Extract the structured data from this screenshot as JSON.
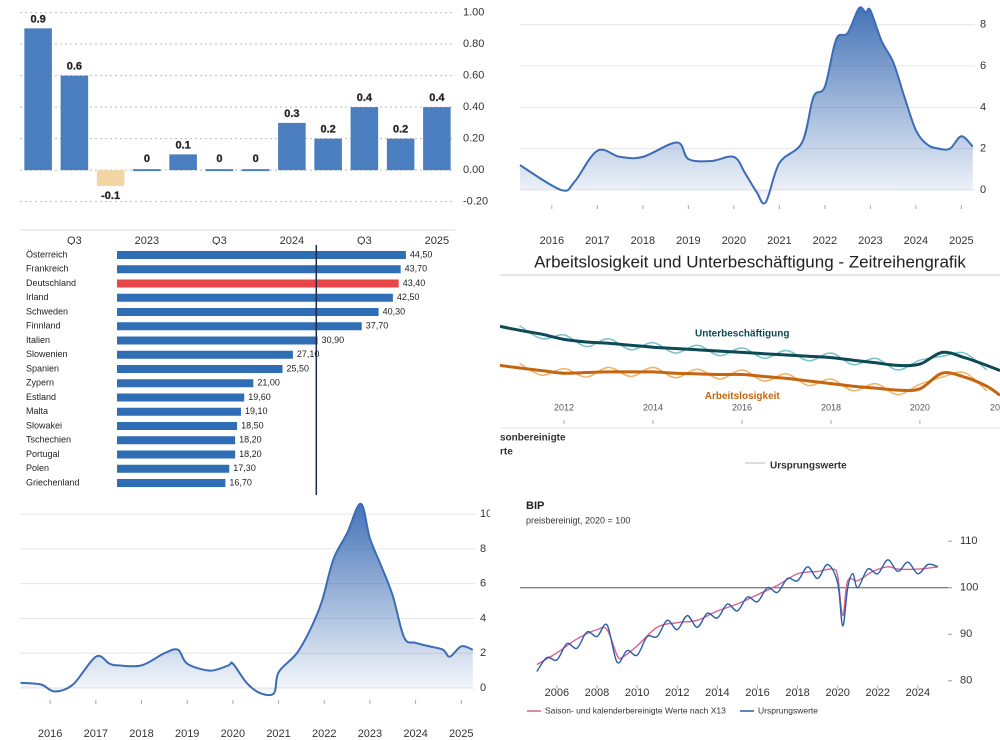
{
  "chart_data": [
    {
      "type": "bar",
      "categories": [
        null,
        "Q3",
        null,
        "2023",
        null,
        "Q3",
        null,
        "2024",
        null,
        "Q3",
        null,
        "2025"
      ],
      "values": [
        0.9,
        0.6,
        -0.1,
        0,
        0.1,
        0,
        0,
        0.3,
        0.2,
        0.4,
        0.2,
        0.4
      ],
      "color": "#4a7ebf",
      "negative_color": "#f3d5a5",
      "ylim": [
        -0.38,
        1.08
      ],
      "yticks": [
        {
          "value": 1,
          "label": "1.00"
        },
        {
          "value": 0.8,
          "label": "0.80"
        },
        {
          "value": 0.6,
          "label": "0.60"
        },
        {
          "value": 0.4,
          "label": "0.40"
        },
        {
          "value": 0.2,
          "label": "0.20"
        },
        {
          "value": 0,
          "label": "0.00"
        },
        {
          "value": -0.2,
          "label": "-0.20"
        }
      ],
      "grid": true
    },
    {
      "type": "area",
      "series": [
        {
          "color": "#3b6cb4",
          "x": [
            2015.3,
            2016.2,
            2016.5,
            2017.0,
            2017.5,
            2018.0,
            2018.75,
            2019.0,
            2019.5,
            2020.0,
            2020.25,
            2020.5,
            2020.7,
            2021.0,
            2021.5,
            2021.75,
            2022.0,
            2022.25,
            2022.5,
            2022.75,
            2022.9,
            2023.0,
            2023.25,
            2023.5,
            2023.75,
            2024.0,
            2024.25,
            2024.5,
            2024.75,
            2025.0,
            2025.25
          ],
          "values": [
            1.2,
            0.0,
            0.4,
            1.9,
            1.6,
            1.6,
            2.3,
            1.5,
            1.4,
            1.6,
            0.8,
            -0.1,
            -0.6,
            1.3,
            2.3,
            4.5,
            5.0,
            7.3,
            7.6,
            8.8,
            8.6,
            8.7,
            7.2,
            6.2,
            4.5,
            2.9,
            2.2,
            2.0,
            2.0,
            2.6,
            2.1
          ]
        }
      ],
      "xlim": [
        2015.3,
        2025.3
      ],
      "ylim": [
        -0.73,
        9.2
      ],
      "xticks": [
        2016,
        2017,
        2018,
        2019,
        2020,
        2021,
        2022,
        2023,
        2024,
        2025
      ],
      "yticks": [
        0,
        2,
        4,
        6,
        8
      ],
      "grid": true
    },
    {
      "type": "line",
      "title": "Arbeitslosigkeit und Unterbeschäftigung - Zeitreihengrafik",
      "series": [
        {
          "color": "#7cc3c9",
          "x": [
            2011.0,
            2011.5,
            2012.0,
            2012.5,
            2013.0,
            2013.5,
            2014.0,
            2014.5,
            2015.0,
            2015.5,
            2016.0,
            2016.5,
            2017.0,
            2017.5,
            2018.0,
            2018.5,
            2019.0,
            2019.5,
            2020.0,
            2020.5,
            2021.0,
            2021.5
          ],
          "values": [
            7.25,
            6.25,
            6.55,
            5.65,
            6.25,
            5.4,
            5.95,
            5.15,
            5.75,
            4.95,
            5.55,
            4.75,
            5.35,
            4.55,
            5.15,
            4.25,
            4.75,
            3.85,
            4.6,
            4.9,
            5.15,
            3.85
          ]
        },
        {
          "color": "#f2b26b",
          "x": [
            2011.0,
            2011.5,
            2012.0,
            2012.5,
            2013.0,
            2013.5,
            2014.0,
            2014.5,
            2015.0,
            2015.5,
            2016.0,
            2016.5,
            2017.0,
            2017.5,
            2018.0,
            2018.5,
            2019.0,
            2019.5,
            2020.0,
            2020.5,
            2021.0,
            2021.5
          ],
          "values": [
            4.35,
            3.45,
            3.95,
            3.3,
            4.05,
            3.35,
            4.05,
            3.25,
            3.9,
            3.15,
            3.85,
            3.0,
            3.55,
            2.65,
            3.15,
            2.25,
            2.8,
            1.95,
            2.75,
            3.3,
            3.65,
            2.25
          ]
        },
        {
          "name": "Unterbeschäftigung",
          "color": "#0d4a55",
          "x": [
            2010.56,
            2011.0,
            2011.5,
            2012.0,
            2012.5,
            2013.0,
            2013.5,
            2014.0,
            2014.5,
            2015.0,
            2015.5,
            2016.0,
            2016.5,
            2017.0,
            2017.5,
            2018.0,
            2018.5,
            2019.0,
            2019.5,
            2020.0,
            2020.5,
            2021.0,
            2021.5,
            2021.8
          ],
          "values": [
            7.2,
            6.9,
            6.6,
            6.2,
            6.0,
            5.9,
            5.75,
            5.6,
            5.5,
            5.4,
            5.3,
            5.2,
            5.1,
            5.0,
            4.9,
            4.8,
            4.6,
            4.4,
            4.2,
            4.3,
            5.2,
            4.8,
            4.2,
            3.8
          ]
        },
        {
          "name": "Arbeitslosigkeit",
          "color": "#c6650f",
          "x": [
            2010.56,
            2011.0,
            2011.5,
            2012.0,
            2012.5,
            2013.0,
            2013.5,
            2014.0,
            2014.5,
            2015.0,
            2015.5,
            2016.0,
            2016.5,
            2017.0,
            2017.5,
            2018.0,
            2018.5,
            2019.0,
            2019.5,
            2020.0,
            2020.5,
            2021.0,
            2021.5,
            2021.8
          ],
          "values": [
            4.2,
            4.0,
            3.8,
            3.6,
            3.65,
            3.7,
            3.7,
            3.7,
            3.6,
            3.55,
            3.5,
            3.5,
            3.35,
            3.2,
            3.0,
            2.8,
            2.6,
            2.45,
            2.3,
            2.4,
            3.6,
            3.3,
            2.6,
            1.9
          ]
        }
      ],
      "xlim": [
        2010.56,
        2021.8
      ],
      "ylim": [
        0,
        10
      ],
      "xticks": [
        2012,
        2014,
        2016,
        2018,
        2020,
        {
          "value": 2022,
          "label": "20"
        }
      ],
      "legend": [
        "sonbereinigte",
        "rte",
        "Ursprungswerte"
      ]
    },
    {
      "type": "hbar",
      "categories": [
        "Österreich",
        "Frankreich",
        "Deutschland",
        "Irland",
        "Schweden",
        "Finnland",
        "Italien",
        "Slowenien",
        "Spanien",
        "Zypern",
        "Estland",
        "Malta",
        "Slowakei",
        "Tschechien",
        "Portugal",
        "Polen",
        "Griechenland"
      ],
      "values": [
        44.5,
        43.7,
        43.4,
        42.5,
        40.3,
        37.7,
        30.9,
        27.1,
        25.5,
        21.0,
        19.6,
        19.1,
        18.5,
        18.2,
        18.2,
        17.3,
        16.7
      ],
      "value_labels": [
        "44,50",
        "43,70",
        "43,40",
        "42,50",
        "40,30",
        "37,70",
        "30,90",
        "27,10",
        "25,50",
        "21,00",
        "19,60",
        "19,10",
        "18,50",
        "18,20",
        "18,20",
        "17,30",
        "16,70"
      ],
      "colors": [
        "#2f6db5",
        "#2f6db5",
        "#e8474a",
        "#2f6db5",
        "#2f6db5",
        "#2f6db5",
        "#2f6db5",
        "#2f6db5",
        "#2f6db5",
        "#2f6db5",
        "#2f6db5",
        "#2f6db5",
        "#2f6db5",
        "#2f6db5",
        "#2f6db5",
        "#2f6db5",
        "#2f6db5"
      ],
      "xlim": [
        0,
        57
      ],
      "reference": 30.7
    },
    {
      "type": "area",
      "series": [
        {
          "color": "#3b6cb4",
          "x": [
            2015.35,
            2015.8,
            2016.1,
            2016.5,
            2017.0,
            2017.3,
            2017.5,
            2018.0,
            2018.5,
            2018.8,
            2019.0,
            2019.5,
            2019.9,
            2020.0,
            2020.3,
            2020.6,
            2020.9,
            2021.0,
            2021.4,
            2021.7,
            2021.95,
            2022.2,
            2022.5,
            2022.8,
            2023.0,
            2023.25,
            2023.5,
            2023.75,
            2024.0,
            2024.3,
            2024.6,
            2024.75,
            2025.0,
            2025.25
          ],
          "values": [
            0.3,
            0.2,
            -0.2,
            0.2,
            1.8,
            1.4,
            1.3,
            1.3,
            2.0,
            2.2,
            1.4,
            1.0,
            1.3,
            1.4,
            0.3,
            -0.3,
            -0.3,
            0.9,
            2.0,
            3.4,
            5.0,
            7.4,
            8.9,
            10.6,
            8.6,
            7.0,
            5.3,
            2.9,
            2.6,
            2.4,
            2.2,
            1.8,
            2.4,
            2.2
          ]
        }
      ],
      "xlim": [
        2015.34,
        2025.3
      ],
      "ylim": [
        -0.69,
        11.1
      ],
      "xticks": [
        2016,
        2017,
        2018,
        2019,
        2020,
        2021,
        2022,
        2023,
        2024,
        2025
      ],
      "yticks": [
        0,
        2,
        4,
        6,
        8,
        10
      ],
      "grid": true
    },
    {
      "type": "line",
      "title": "BIP",
      "subtitle": "preisbereinigt, 2020 = 100",
      "series": [
        {
          "name": "Saison- und kalenderbereinigte Werte nach X13",
          "color": "#d9608f",
          "x": [
            2005,
            2006,
            2007,
            2008,
            2008.5,
            2009,
            2009.25,
            2010,
            2011,
            2012,
            2013,
            2014,
            2015,
            2016,
            2017,
            2018,
            2019,
            2019.75,
            2020,
            2020.25,
            2020.5,
            2021,
            2021.75,
            2022.5,
            2023,
            2024,
            2025
          ],
          "values": [
            83.5,
            86,
            89,
            91,
            91,
            85.5,
            85,
            87.5,
            91.5,
            92.5,
            93,
            95,
            96.5,
            98.5,
            100.5,
            103,
            103.5,
            104,
            102.5,
            94,
            101.5,
            101.5,
            103.5,
            104.5,
            104,
            104,
            104.5
          ]
        },
        {
          "name": "Ursprungswerte",
          "color": "#2a5ea8",
          "x": [
            2005.0,
            2005.5,
            2006.0,
            2006.5,
            2007.0,
            2007.5,
            2008.0,
            2008.5,
            2009.0,
            2009.5,
            2010.0,
            2010.5,
            2011.0,
            2011.5,
            2012.0,
            2012.5,
            2013.0,
            2013.5,
            2014.0,
            2014.5,
            2015.0,
            2015.5,
            2016.0,
            2016.5,
            2017.0,
            2017.5,
            2018.0,
            2018.5,
            2019.0,
            2019.5,
            2020.0,
            2020.25,
            2020.5,
            2020.75,
            2021.0,
            2021.5,
            2022.0,
            2022.5,
            2023.0,
            2023.5,
            2024.0,
            2024.5,
            2025.0
          ],
          "values": [
            82,
            85,
            84.5,
            88,
            87,
            90.5,
            89.5,
            92,
            84,
            86.5,
            85.5,
            89.5,
            89.5,
            93,
            91,
            94,
            91.5,
            94.5,
            93.5,
            96.5,
            95,
            98,
            97,
            100,
            99,
            102,
            101.5,
            104.5,
            102,
            105,
            101,
            91.8,
            100,
            103,
            100,
            104,
            103,
            106,
            103.5,
            105.5,
            103,
            105,
            104.5
          ]
        }
      ],
      "xlim": [
        2004.16,
        2025.5
      ],
      "ylim": [
        79.1,
        112.4
      ],
      "xticks": [
        2006,
        2008,
        2010,
        2012,
        2014,
        2016,
        2018,
        2020,
        2022,
        2024
      ],
      "yticks": [
        80,
        90,
        100,
        110
      ],
      "reference": 100,
      "legend": true
    }
  ]
}
